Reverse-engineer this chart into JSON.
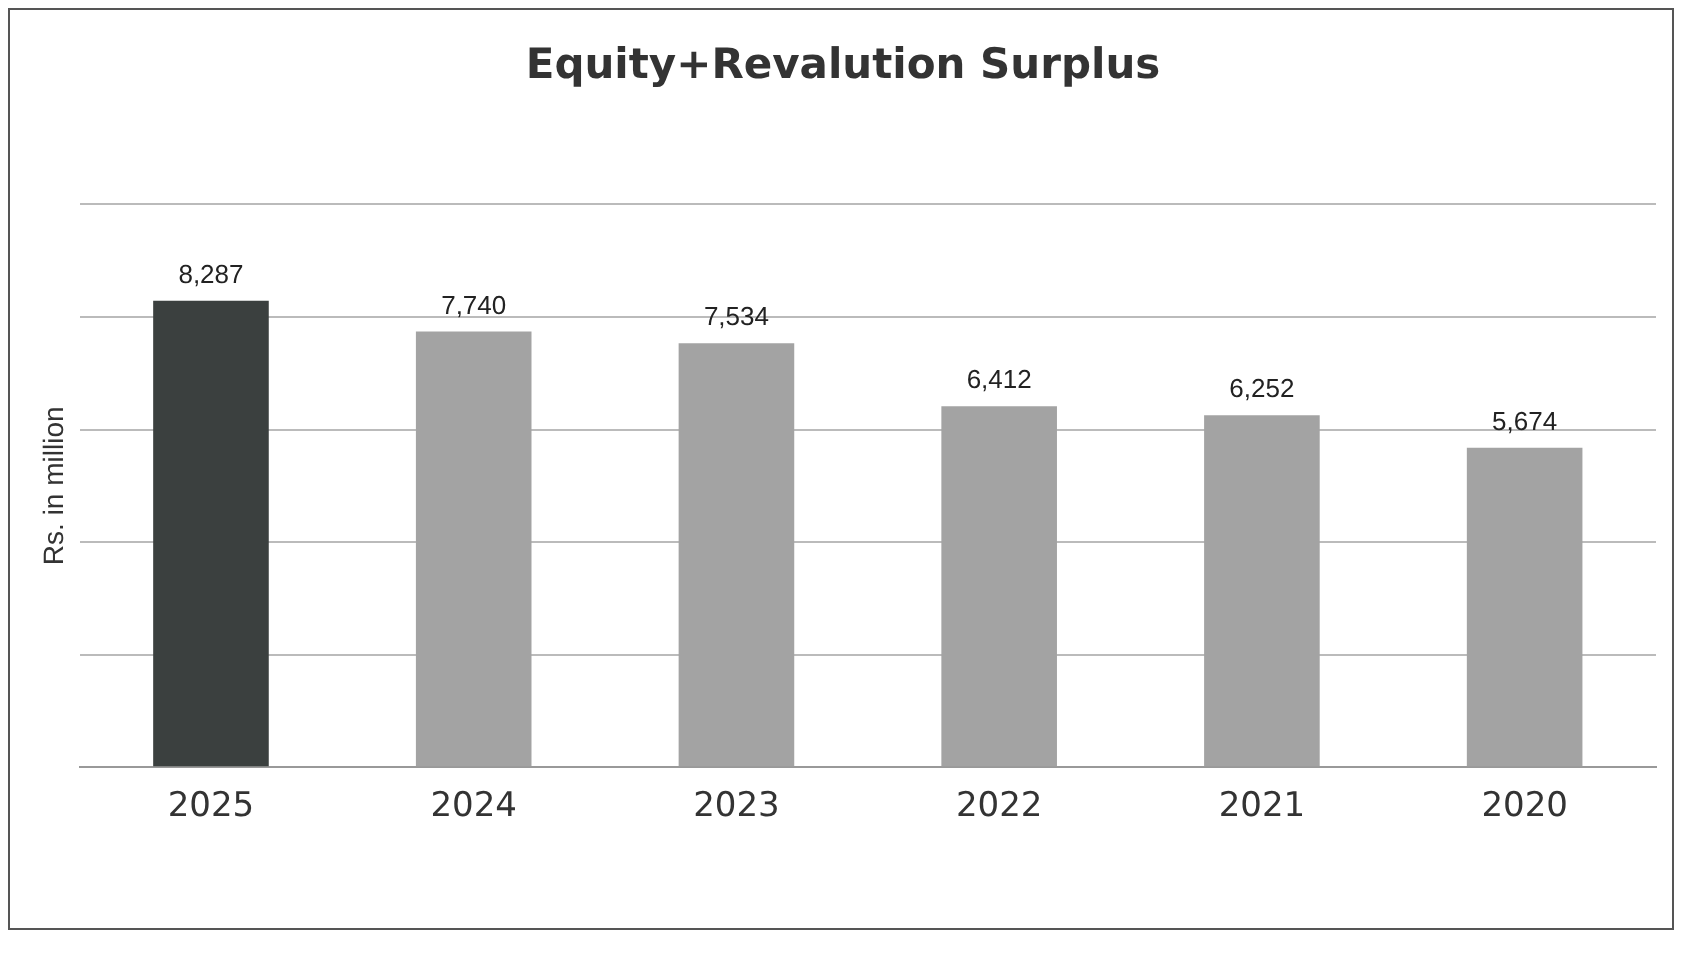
{
  "chart_data": {
    "type": "bar",
    "title": "Equity+Revalution Surplus",
    "ylabel": "Rs. in million",
    "categories": [
      "2025",
      "2024",
      "2023",
      "2022",
      "2021",
      "2020"
    ],
    "values": [
      8287,
      7740,
      7534,
      6412,
      6252,
      5674
    ],
    "value_labels": [
      "8,287",
      "7,740",
      "7,534",
      "6,412",
      "6,252",
      "5,674"
    ],
    "colors": [
      "#3b403f",
      "#a3a3a3",
      "#a3a3a3",
      "#a3a3a3",
      "#a3a3a3",
      "#a3a3a3"
    ],
    "ylim": [
      0,
      10000
    ],
    "yticks": [
      {
        "value": 0,
        "label": null
      },
      {
        "value": 2000,
        "label": null
      },
      {
        "value": 4000,
        "label": null
      },
      {
        "value": 6000,
        "label": null
      },
      {
        "value": 8000,
        "label": null
      },
      {
        "value": 10000,
        "label": null
      }
    ],
    "tick_labels": "x",
    "grid": "y",
    "legend": false
  }
}
